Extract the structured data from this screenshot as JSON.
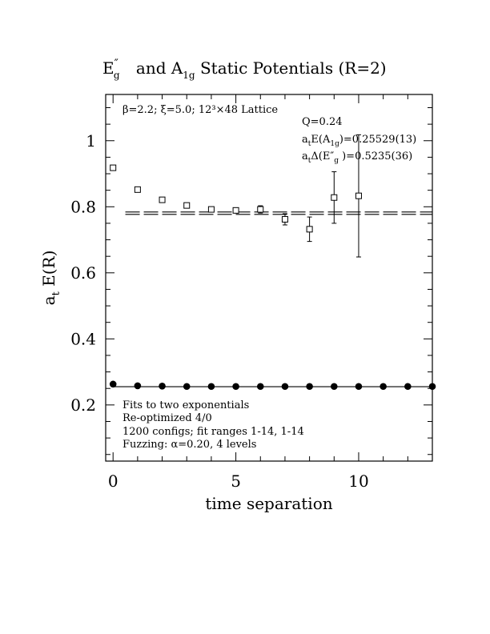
{
  "chart_data": {
    "type": "scatter",
    "title_parts": {
      "e_main": "E",
      "e_prime": "″",
      "e_sub": "g",
      "and": " and A",
      "a_sub": "1g",
      "rest": " Static Potentials (R=2)"
    },
    "xlabel": "time separation",
    "ylabel_main": "a",
    "ylabel_sub": "t",
    "ylabel_rest": " E(R)",
    "xlim": [
      -0.3,
      13
    ],
    "ylim": [
      0.03,
      1.14
    ],
    "x_ticks": [
      0,
      5,
      10
    ],
    "x_tick_labels": [
      "0",
      "5",
      "10"
    ],
    "y_ticks": [
      0.2,
      0.4,
      0.6,
      0.8,
      1.0
    ],
    "y_tick_labels": [
      "0.2",
      "0.4",
      "0.6",
      "0.8",
      "1"
    ],
    "header_annotation": "β=2.2; ξ=5.0; 12³×48 Lattice",
    "fit_annotations": {
      "q": "Q=0.24",
      "a1g_prefix": "a",
      "a1g_sub_t": "t",
      "a1g_mid": "E(A",
      "a1g_sub": "1g",
      "a1g_value": ")=0.25529(13)",
      "eg_prefix": "a",
      "eg_sub_t": "t",
      "eg_mid": "Δ(E″",
      "eg_sub": "g",
      "eg_value": " )=0.5235(36)"
    },
    "footer_annotations": [
      "Fits to two exponentials",
      "Re-optimized 4/0",
      "1200 configs; fit ranges 1-14, 1-14",
      "Fuzzing: α=0.20, 4 levels"
    ],
    "series": [
      {
        "marker": "open-square",
        "x": [
          0,
          1,
          2,
          3,
          4,
          5,
          6,
          7,
          8,
          9,
          10
        ],
        "y": [
          0.918,
          0.852,
          0.821,
          0.804,
          0.792,
          0.789,
          0.792,
          0.762,
          0.732,
          0.828,
          0.833
        ],
        "err": [
          0.004,
          0.004,
          0.004,
          0.005,
          0.006,
          0.008,
          0.011,
          0.017,
          0.037,
          0.078,
          0.185
        ]
      },
      {
        "marker": "filled-circle",
        "x": [
          0,
          1,
          2,
          3,
          4,
          5,
          6,
          7,
          8,
          9,
          10,
          11,
          12,
          13
        ],
        "y": [
          0.263,
          0.258,
          0.257,
          0.256,
          0.256,
          0.256,
          0.256,
          0.256,
          0.256,
          0.256,
          0.256,
          0.256,
          0.256,
          0.256
        ],
        "err": [
          0.001,
          0.001,
          0.001,
          0.001,
          0.001,
          0.001,
          0.001,
          0.001,
          0.001,
          0.001,
          0.001,
          0.001,
          0.001,
          0.001
        ]
      }
    ],
    "fit_lines": [
      {
        "style": "dashed-band",
        "y_center": 0.7805,
        "y_halfwidth": 0.0036,
        "x_range": [
          0.5,
          13
        ]
      },
      {
        "style": "solid",
        "y_center": 0.2553,
        "y_halfwidth": 0.0002,
        "x_range": [
          0,
          13
        ]
      }
    ]
  }
}
